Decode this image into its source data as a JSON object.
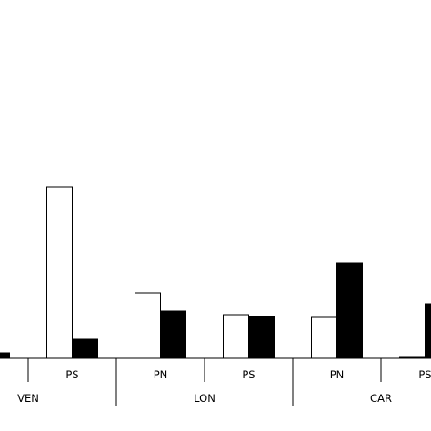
{
  "chart_data": {
    "type": "bar",
    "colors": {
      "series_a": "#ffffff",
      "series_b": "#000000",
      "outline": "#000000"
    },
    "groups": [
      {
        "label": "VEN",
        "subcategories": [
          {
            "label": "",
            "values": [
              null,
              6
            ]
          },
          {
            "label": "PS",
            "values": [
              188,
              21
            ]
          }
        ]
      },
      {
        "label": "LON",
        "subcategories": [
          {
            "label": "PN",
            "values": [
              72,
              52
            ]
          },
          {
            "label": "PS",
            "values": [
              48,
              46
            ]
          }
        ]
      },
      {
        "label": "CAR",
        "subcategories": [
          {
            "label": "PN",
            "values": [
              45,
              105
            ]
          },
          {
            "label": "PS",
            "values": [
              1,
              60
            ]
          }
        ]
      }
    ],
    "legend": "none",
    "grid": false
  }
}
